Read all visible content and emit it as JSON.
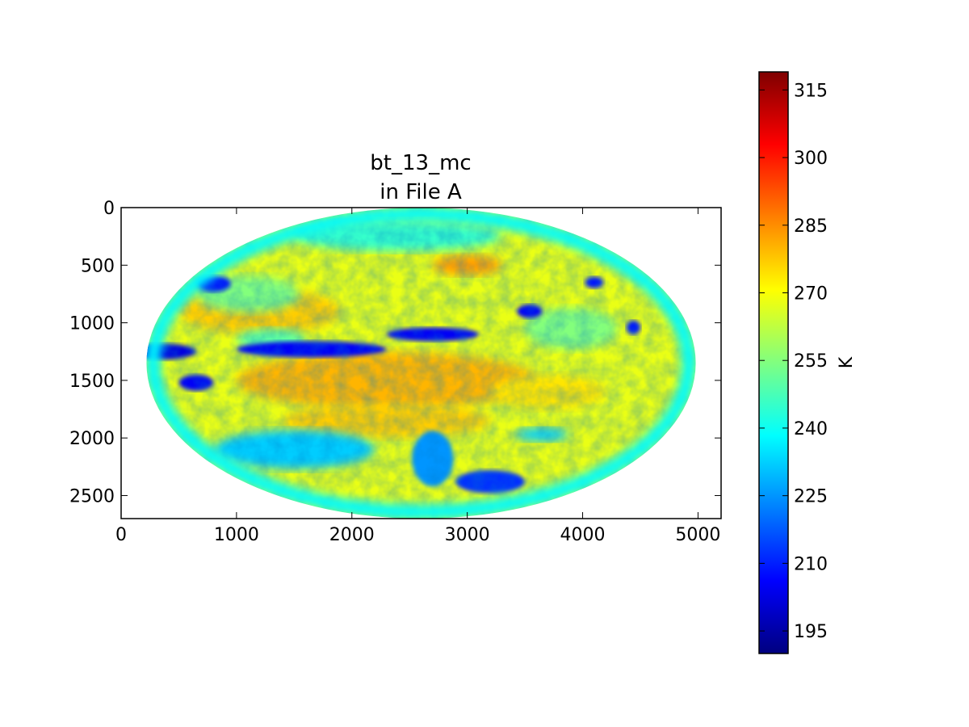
{
  "chart_data": {
    "type": "heatmap",
    "title": "bt_13_mc",
    "subtitle": "in File A",
    "xlabel": "",
    "ylabel": "",
    "x_range": [
      0,
      5200
    ],
    "y_range": [
      2700,
      0
    ],
    "x_ticks": [
      0,
      1000,
      2000,
      3000,
      4000,
      5000
    ],
    "y_ticks": [
      0,
      500,
      1000,
      1500,
      2000,
      2500
    ],
    "grid": false,
    "disk": {
      "center_x": 2600,
      "center_y": 1350,
      "radius_x": 2380,
      "radius_y": 1350
    },
    "colorbar": {
      "label": "K",
      "range": [
        190,
        319
      ],
      "ticks": [
        195,
        210,
        225,
        240,
        255,
        270,
        285,
        300,
        315
      ],
      "colormap": "jet",
      "placement": "right"
    },
    "features": [
      {
        "kind": "cold-cloud",
        "x": 1650,
        "y": 1230,
        "rx": 650,
        "ry": 70,
        "value": 205
      },
      {
        "kind": "cold-cloud",
        "x": 2700,
        "y": 1100,
        "rx": 400,
        "ry": 60,
        "value": 205
      },
      {
        "kind": "cold-cloud",
        "x": 350,
        "y": 1250,
        "rx": 300,
        "ry": 70,
        "value": 202
      },
      {
        "kind": "cold-cloud",
        "x": 800,
        "y": 660,
        "rx": 150,
        "ry": 70,
        "value": 208
      },
      {
        "kind": "cold-cloud",
        "x": 650,
        "y": 1520,
        "rx": 150,
        "ry": 70,
        "value": 205
      },
      {
        "kind": "cold-cloud",
        "x": 3540,
        "y": 900,
        "rx": 110,
        "ry": 60,
        "value": 205
      },
      {
        "kind": "cold-cloud",
        "x": 4100,
        "y": 650,
        "rx": 80,
        "ry": 50,
        "value": 208
      },
      {
        "kind": "cold-cloud",
        "x": 4440,
        "y": 1040,
        "rx": 60,
        "ry": 60,
        "value": 208
      },
      {
        "kind": "cold-cloud",
        "x": 3200,
        "y": 2380,
        "rx": 300,
        "ry": 100,
        "value": 212
      },
      {
        "kind": "cold-cloud",
        "x": 2700,
        "y": 2180,
        "rx": 180,
        "ry": 240,
        "value": 225
      },
      {
        "kind": "cold-cloud",
        "x": 1500,
        "y": 2100,
        "rx": 700,
        "ry": 170,
        "value": 232
      },
      {
        "kind": "cold-cloud",
        "x": 3650,
        "y": 1970,
        "rx": 230,
        "ry": 60,
        "value": 232
      },
      {
        "kind": "cold-cloud",
        "x": 1300,
        "y": 1150,
        "rx": 300,
        "ry": 100,
        "value": 250
      },
      {
        "kind": "cold-cloud",
        "x": 1100,
        "y": 750,
        "rx": 450,
        "ry": 160,
        "value": 255
      },
      {
        "kind": "cold-cloud",
        "x": 3900,
        "y": 1050,
        "rx": 400,
        "ry": 180,
        "value": 255
      },
      {
        "kind": "cold-cloud",
        "x": 2400,
        "y": 250,
        "rx": 900,
        "ry": 130,
        "value": 245
      },
      {
        "kind": "warm-area",
        "x": 2300,
        "y": 1500,
        "rx": 1300,
        "ry": 250,
        "value": 280
      },
      {
        "kind": "warm-area",
        "x": 1200,
        "y": 900,
        "rx": 700,
        "ry": 200,
        "value": 277
      },
      {
        "kind": "warm-area",
        "x": 3000,
        "y": 500,
        "rx": 300,
        "ry": 90,
        "value": 283
      },
      {
        "kind": "warm-area",
        "x": 2300,
        "y": 1850,
        "rx": 900,
        "ry": 150,
        "value": 277
      },
      {
        "kind": "warm-area",
        "x": 3700,
        "y": 1600,
        "rx": 500,
        "ry": 150,
        "value": 274
      }
    ]
  }
}
